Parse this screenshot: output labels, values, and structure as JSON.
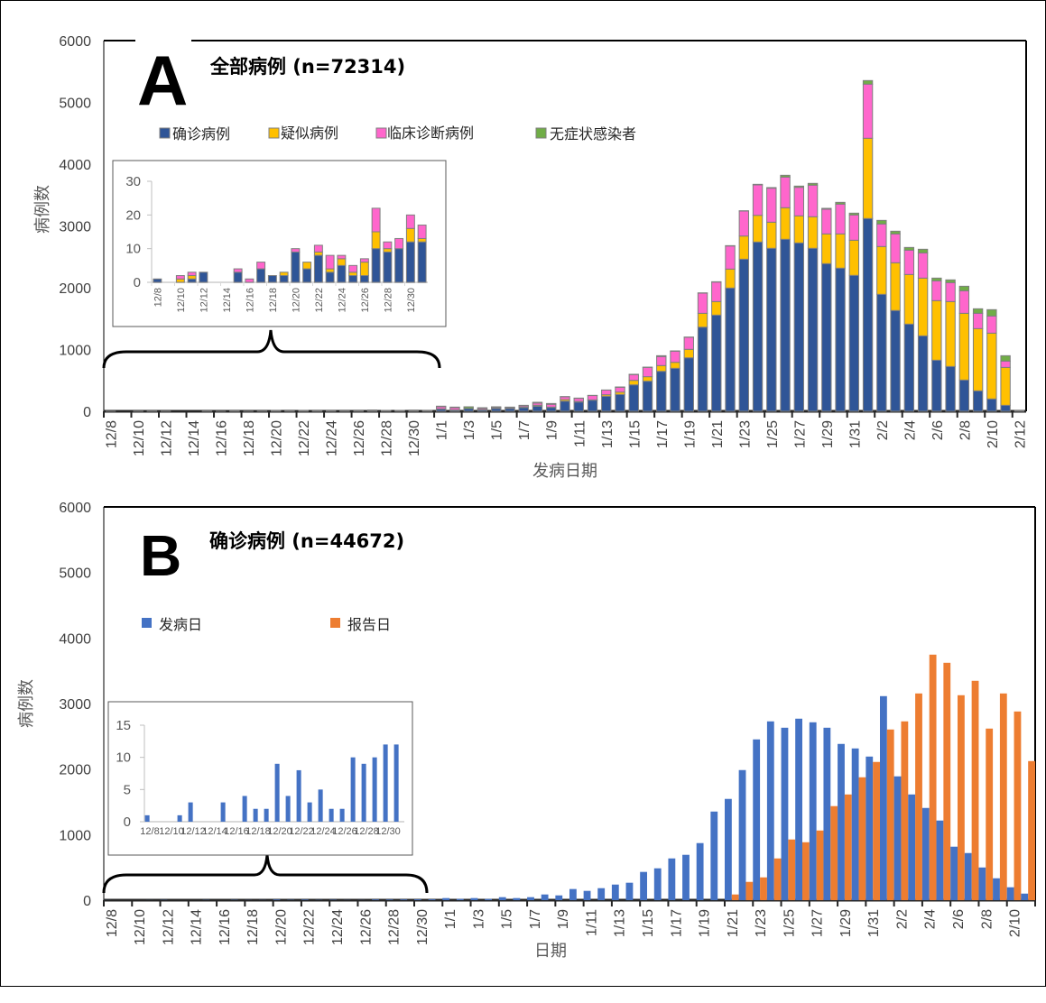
{
  "colors": {
    "confirmed": "#2F5597",
    "suspected": "#FFC000",
    "clinical": "#FF66CC",
    "asymptomatic": "#70AD47",
    "onset": "#4472C4",
    "report": "#ED7D31"
  },
  "chart_data": [
    {
      "type": "bar",
      "stacked": true,
      "panel": "A",
      "title": "全部病例 (n=72314)",
      "xlabel": "发病日期",
      "ylabel": "病例数",
      "ylim": [
        0,
        6000
      ],
      "yticks": [
        "0",
        "1000",
        "2000",
        "3000",
        "4000",
        "5000",
        "6000"
      ],
      "grid": false,
      "legend_position": "top-left",
      "categories": [
        "12/8",
        "12/9",
        "12/10",
        "12/11",
        "12/12",
        "12/13",
        "12/14",
        "12/15",
        "12/16",
        "12/17",
        "12/18",
        "12/19",
        "12/20",
        "12/21",
        "12/22",
        "12/23",
        "12/24",
        "12/25",
        "12/26",
        "12/27",
        "12/28",
        "12/29",
        "12/30",
        "12/31",
        "1/1",
        "1/2",
        "1/3",
        "1/4",
        "1/5",
        "1/6",
        "1/7",
        "1/8",
        "1/9",
        "1/10",
        "1/11",
        "1/12",
        "1/13",
        "1/14",
        "1/15",
        "1/16",
        "1/17",
        "1/18",
        "1/19",
        "1/20",
        "1/21",
        "1/22",
        "1/23",
        "1/24",
        "1/25",
        "1/26",
        "1/27",
        "1/28",
        "1/29",
        "1/30",
        "1/31",
        "2/1",
        "2/2",
        "2/3",
        "2/4",
        "2/5",
        "2/6",
        "2/7",
        "2/8",
        "2/9",
        "2/10",
        "2/11",
        "2/12"
      ],
      "series": [
        {
          "name": "确诊病例",
          "values": [
            1,
            0,
            0,
            1,
            3,
            0,
            0,
            3,
            0,
            4,
            2,
            2,
            9,
            4,
            8,
            3,
            5,
            2,
            2,
            10,
            9,
            10,
            12,
            12,
            35,
            20,
            45,
            25,
            45,
            45,
            60,
            83,
            63,
            165,
            150,
            180,
            243,
            272,
            428,
            487,
            647,
            696,
            866,
            1362,
            1557,
            1995,
            2462,
            2740,
            2638,
            2784,
            2725,
            2638,
            2390,
            2317,
            2200,
            3120,
            1893,
            1631,
            1411,
            1221,
            827,
            725,
            506,
            331,
            200,
            97,
            10
          ]
        },
        {
          "name": "疑似病例",
          "values": [
            0,
            0,
            1,
            1,
            0,
            0,
            0,
            0,
            0,
            0,
            0,
            1,
            0,
            2,
            1,
            1,
            2,
            1,
            4,
            5,
            1,
            0,
            4,
            1,
            5,
            3,
            0,
            5,
            5,
            5,
            8,
            15,
            5,
            25,
            10,
            5,
            25,
            39,
            73,
            73,
            93,
            97,
            137,
            224,
            219,
            307,
            375,
            432,
            423,
            511,
            438,
            511,
            481,
            554,
            569,
            1299,
            774,
            773,
            803,
            935,
            964,
            1051,
            1080,
            1007,
            1065,
            613,
            0
          ]
        },
        {
          "name": "临床诊断病例",
          "values": [
            0,
            0,
            1,
            1,
            0,
            0,
            0,
            1,
            1,
            2,
            0,
            0,
            1,
            0,
            2,
            4,
            1,
            2,
            1,
            7,
            2,
            3,
            4,
            4,
            35,
            35,
            0,
            20,
            15,
            15,
            20,
            35,
            45,
            45,
            50,
            70,
            75,
            78,
            93,
            150,
            146,
            180,
            194,
            326,
            316,
            374,
            404,
            492,
            550,
            496,
            462,
            511,
            399,
            482,
            409,
            876,
            365,
            467,
            394,
            408,
            321,
            307,
            365,
            248,
            277,
            103,
            0
          ]
        },
        {
          "name": "无症状感染者",
          "values": [
            0,
            0,
            0,
            0,
            0,
            0,
            0,
            0,
            0,
            0,
            0,
            0,
            0,
            0,
            0,
            0,
            0,
            0,
            0,
            0,
            0,
            0,
            0,
            0,
            8,
            10,
            28,
            8,
            8,
            3,
            9,
            13,
            13,
            3,
            4,
            3,
            2,
            5,
            5,
            5,
            14,
            5,
            5,
            5,
            5,
            5,
            5,
            10,
            10,
            29,
            20,
            29,
            15,
            29,
            29,
            58,
            58,
            44,
            44,
            59,
            44,
            44,
            73,
            73,
            103,
            87,
            0
          ]
        }
      ],
      "inset": {
        "ylim": [
          0,
          30
        ],
        "yticks": [
          "0",
          "10",
          "20",
          "30"
        ],
        "range": [
          "12/8",
          "12/31"
        ]
      }
    },
    {
      "type": "bar",
      "stacked": false,
      "panel": "B",
      "title": "确诊病例 (n=44672)",
      "xlabel": "日期",
      "ylabel": "病例数",
      "ylim": [
        0,
        6000
      ],
      "yticks": [
        "0",
        "1000",
        "2000",
        "3000",
        "4000",
        "5000",
        "6000"
      ],
      "grid": false,
      "legend_position": "top-left",
      "categories": [
        "12/8",
        "12/9",
        "12/10",
        "12/11",
        "12/12",
        "12/13",
        "12/14",
        "12/15",
        "12/16",
        "12/17",
        "12/18",
        "12/19",
        "12/20",
        "12/21",
        "12/22",
        "12/23",
        "12/24",
        "12/25",
        "12/26",
        "12/27",
        "12/28",
        "12/29",
        "12/30",
        "12/31",
        "1/1",
        "1/2",
        "1/3",
        "1/4",
        "1/5",
        "1/6",
        "1/7",
        "1/8",
        "1/9",
        "1/10",
        "1/11",
        "1/12",
        "1/13",
        "1/14",
        "1/15",
        "1/16",
        "1/17",
        "1/18",
        "1/19",
        "1/20",
        "1/21",
        "1/22",
        "1/23",
        "1/24",
        "1/25",
        "1/26",
        "1/27",
        "1/28",
        "1/29",
        "1/30",
        "1/31",
        "2/1",
        "2/2",
        "2/3",
        "2/4",
        "2/5",
        "2/6",
        "2/7",
        "2/8",
        "2/9",
        "2/10",
        "2/11"
      ],
      "series": [
        {
          "name": "发病日",
          "values": [
            1,
            0,
            0,
            1,
            3,
            0,
            0,
            3,
            0,
            4,
            2,
            2,
            9,
            4,
            8,
            3,
            5,
            2,
            2,
            10,
            9,
            10,
            12,
            12,
            32,
            18,
            32,
            18,
            46,
            32,
            46,
            87,
            73,
            170,
            142,
            183,
            238,
            266,
            431,
            486,
            637,
            692,
            871,
            1352,
            1545,
            1985,
            2453,
            2728,
            2631,
            2769,
            2714,
            2631,
            2384,
            2315,
            2191,
            3113,
            1889,
            1613,
            1407,
            1215,
            816,
            719,
            499,
            334,
            197,
            100
          ]
        },
        {
          "name": "报告日",
          "values": [
            0,
            0,
            0,
            0,
            0,
            0,
            0,
            0,
            0,
            0,
            0,
            0,
            0,
            0,
            0,
            0,
            0,
            0,
            0,
            0,
            0,
            0,
            0,
            0,
            0,
            0,
            0,
            0,
            0,
            0,
            0,
            0,
            0,
            0,
            0,
            0,
            0,
            0,
            0,
            0,
            0,
            0,
            0,
            0,
            87,
            279,
            348,
            637,
            926,
            884,
            1063,
            1435,
            1613,
            1875,
            2109,
            2604,
            2728,
            3154,
            3746,
            3622,
            3127,
            3347,
            2618,
            3154,
            2879,
            2122
          ]
        }
      ],
      "inset": {
        "ylim": [
          0,
          15
        ],
        "yticks": [
          "0",
          "5",
          "10",
          "15"
        ],
        "range": [
          "12/8",
          "12/31"
        ]
      }
    }
  ],
  "panelA": {
    "letter": "A"
  },
  "panelB": {
    "letter": "B"
  }
}
